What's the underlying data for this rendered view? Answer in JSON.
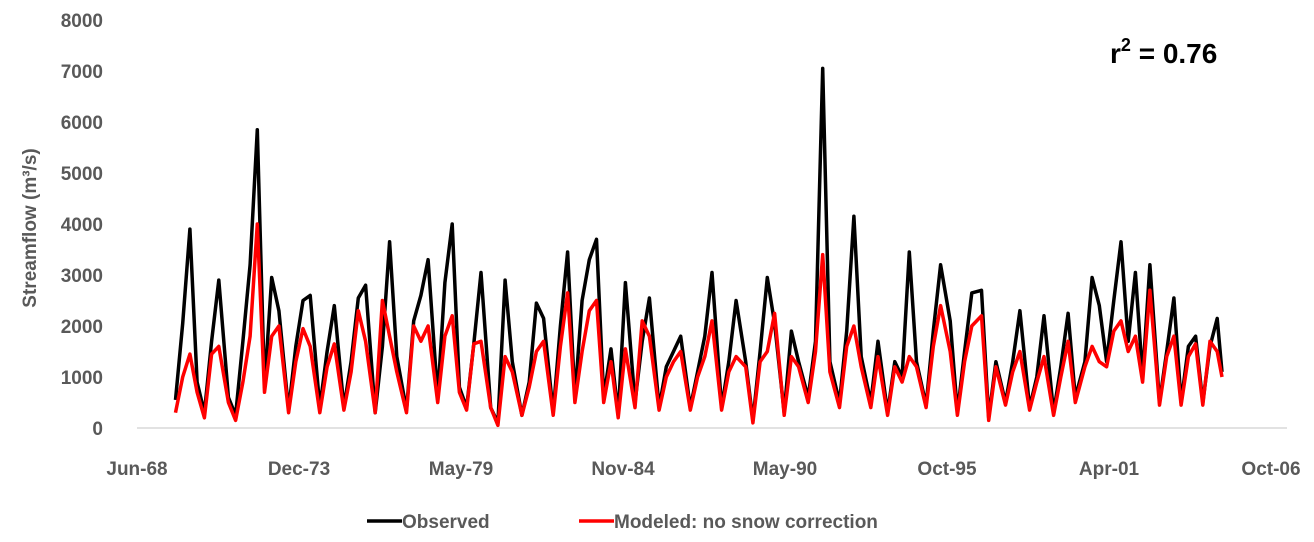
{
  "chart_data": {
    "type": "line",
    "ylabel": "Streamflow (m³/s)",
    "ylim": [
      0,
      8000
    ],
    "y_ticks": [
      "0",
      "1000",
      "2000",
      "3000",
      "4000",
      "5000",
      "6000",
      "7000",
      "8000"
    ],
    "x_ticks": [
      "Jun-68",
      "Dec-73",
      "May-79",
      "Nov-84",
      "May-90",
      "Oct-95",
      "Apr-01",
      "Oct-06"
    ],
    "xlim": [
      "1968-06",
      "2008-04"
    ],
    "grid": false,
    "legend_position": "bottom",
    "annotation": {
      "base": "r",
      "sup": "2",
      "rest": " = 0.76"
    },
    "colors": {
      "observed": "#000000",
      "modeled": "#ff0000"
    },
    "series": [
      {
        "name": "Observed",
        "color": "#000000",
        "points": [
          [
            "1969-10",
            550
          ],
          [
            "1970-01",
            2050
          ],
          [
            "1970-04",
            3900
          ],
          [
            "1970-07",
            900
          ],
          [
            "1970-10",
            300
          ],
          [
            "1971-01",
            1700
          ],
          [
            "1971-04",
            2900
          ],
          [
            "1971-08",
            600
          ],
          [
            "1971-11",
            250
          ],
          [
            "1972-02",
            1700
          ],
          [
            "1972-05",
            3200
          ],
          [
            "1972-08",
            5850
          ],
          [
            "1972-11",
            800
          ],
          [
            "1973-02",
            2950
          ],
          [
            "1973-05",
            2300
          ],
          [
            "1973-09",
            350
          ],
          [
            "1973-12",
            1600
          ],
          [
            "1974-03",
            2500
          ],
          [
            "1974-06",
            2600
          ],
          [
            "1974-10",
            400
          ],
          [
            "1975-01",
            1500
          ],
          [
            "1975-04",
            2400
          ],
          [
            "1975-08",
            400
          ],
          [
            "1975-11",
            1300
          ],
          [
            "1976-02",
            2550
          ],
          [
            "1976-05",
            2800
          ],
          [
            "1976-09",
            300
          ],
          [
            "1976-12",
            1600
          ],
          [
            "1977-03",
            3650
          ],
          [
            "1977-06",
            1400
          ],
          [
            "1977-10",
            350
          ],
          [
            "1978-01",
            2100
          ],
          [
            "1978-04",
            2600
          ],
          [
            "1978-07",
            3300
          ],
          [
            "1978-11",
            600
          ],
          [
            "1979-02",
            2850
          ],
          [
            "1979-05",
            4000
          ],
          [
            "1979-08",
            800
          ],
          [
            "1979-11",
            400
          ],
          [
            "1980-02",
            1650
          ],
          [
            "1980-05",
            3050
          ],
          [
            "1980-09",
            400
          ],
          [
            "1980-12",
            100
          ],
          [
            "1981-03",
            2900
          ],
          [
            "1981-06",
            1300
          ],
          [
            "1981-10",
            250
          ],
          [
            "1982-01",
            900
          ],
          [
            "1982-04",
            2450
          ],
          [
            "1982-07",
            2150
          ],
          [
            "1982-11",
            300
          ],
          [
            "1983-02",
            2000
          ],
          [
            "1983-05",
            3450
          ],
          [
            "1983-08",
            600
          ],
          [
            "1983-11",
            2500
          ],
          [
            "1984-02",
            3300
          ],
          [
            "1984-05",
            3700
          ],
          [
            "1984-08",
            600
          ],
          [
            "1984-11",
            1550
          ],
          [
            "1985-02",
            250
          ],
          [
            "1985-05",
            2850
          ],
          [
            "1985-09",
            500
          ],
          [
            "1985-12",
            1700
          ],
          [
            "1986-03",
            2550
          ],
          [
            "1986-07",
            400
          ],
          [
            "1986-10",
            1200
          ],
          [
            "1987-01",
            1500
          ],
          [
            "1987-04",
            1800
          ],
          [
            "1987-08",
            400
          ],
          [
            "1987-11",
            1100
          ],
          [
            "1988-02",
            1800
          ],
          [
            "1988-05",
            3050
          ],
          [
            "1988-09",
            400
          ],
          [
            "1988-12",
            1300
          ],
          [
            "1989-03",
            2500
          ],
          [
            "1989-07",
            1300
          ],
          [
            "1989-10",
            150
          ],
          [
            "1990-01",
            1500
          ],
          [
            "1990-04",
            2950
          ],
          [
            "1990-07",
            2050
          ],
          [
            "1990-11",
            300
          ],
          [
            "1991-02",
            1900
          ],
          [
            "1991-05",
            1300
          ],
          [
            "1991-09",
            600
          ],
          [
            "1991-12",
            1700
          ],
          [
            "1992-03",
            7050
          ],
          [
            "1992-06",
            1300
          ],
          [
            "1992-10",
            500
          ],
          [
            "1993-01",
            1900
          ],
          [
            "1993-04",
            4150
          ],
          [
            "1993-07",
            1400
          ],
          [
            "1993-11",
            500
          ],
          [
            "1994-02",
            1700
          ],
          [
            "1994-06",
            300
          ],
          [
            "1994-09",
            1300
          ],
          [
            "1994-12",
            1000
          ],
          [
            "1995-03",
            3450
          ],
          [
            "1995-06",
            1300
          ],
          [
            "1995-10",
            450
          ],
          [
            "1996-01",
            1900
          ],
          [
            "1996-04",
            3200
          ],
          [
            "1996-08",
            2100
          ],
          [
            "1996-11",
            300
          ],
          [
            "1997-02",
            1500
          ],
          [
            "1997-05",
            2650
          ],
          [
            "1997-09",
            2700
          ],
          [
            "1997-12",
            200
          ],
          [
            "1998-03",
            1300
          ],
          [
            "1998-07",
            500
          ],
          [
            "1998-10",
            1300
          ],
          [
            "1999-01",
            2300
          ],
          [
            "1999-05",
            400
          ],
          [
            "1999-08",
            1000
          ],
          [
            "1999-11",
            2200
          ],
          [
            "2000-03",
            300
          ],
          [
            "2000-06",
            1200
          ],
          [
            "2000-09",
            2250
          ],
          [
            "2000-12",
            600
          ],
          [
            "2001-04",
            1300
          ],
          [
            "2001-07",
            2950
          ],
          [
            "2001-10",
            2400
          ],
          [
            "2002-01",
            1300
          ],
          [
            "2002-04",
            2500
          ],
          [
            "2002-07",
            3650
          ],
          [
            "2002-10",
            1700
          ],
          [
            "2003-01",
            3050
          ],
          [
            "2003-04",
            1000
          ],
          [
            "2003-07",
            3200
          ],
          [
            "2003-11",
            500
          ],
          [
            "2004-02",
            1500
          ],
          [
            "2004-05",
            2550
          ],
          [
            "2004-08",
            500
          ],
          [
            "2004-11",
            1600
          ],
          [
            "2005-02",
            1800
          ],
          [
            "2005-05",
            500
          ],
          [
            "2005-08",
            1600
          ],
          [
            "2005-11",
            2150
          ],
          [
            "2006-01",
            1100
          ]
        ]
      },
      {
        "name": "Modeled: no snow correction",
        "color": "#ff0000",
        "points": [
          [
            "1969-10",
            300
          ],
          [
            "1970-01",
            1000
          ],
          [
            "1970-04",
            1450
          ],
          [
            "1970-07",
            700
          ],
          [
            "1970-10",
            200
          ],
          [
            "1971-01",
            1450
          ],
          [
            "1971-04",
            1600
          ],
          [
            "1971-08",
            500
          ],
          [
            "1971-11",
            150
          ],
          [
            "1972-02",
            900
          ],
          [
            "1972-05",
            1800
          ],
          [
            "1972-08",
            4000
          ],
          [
            "1972-11",
            700
          ],
          [
            "1973-02",
            1800
          ],
          [
            "1973-05",
            2000
          ],
          [
            "1973-09",
            300
          ],
          [
            "1973-12",
            1300
          ],
          [
            "1974-03",
            1950
          ],
          [
            "1974-06",
            1600
          ],
          [
            "1974-10",
            300
          ],
          [
            "1975-01",
            1200
          ],
          [
            "1975-04",
            1650
          ],
          [
            "1975-08",
            350
          ],
          [
            "1975-11",
            1100
          ],
          [
            "1976-02",
            2300
          ],
          [
            "1976-05",
            1700
          ],
          [
            "1976-09",
            300
          ],
          [
            "1976-12",
            2500
          ],
          [
            "1977-03",
            1800
          ],
          [
            "1977-06",
            1100
          ],
          [
            "1977-10",
            300
          ],
          [
            "1978-01",
            2000
          ],
          [
            "1978-04",
            1700
          ],
          [
            "1978-07",
            2000
          ],
          [
            "1978-11",
            500
          ],
          [
            "1979-02",
            1800
          ],
          [
            "1979-05",
            2200
          ],
          [
            "1979-08",
            700
          ],
          [
            "1979-11",
            350
          ],
          [
            "1980-02",
            1650
          ],
          [
            "1980-05",
            1700
          ],
          [
            "1980-09",
            400
          ],
          [
            "1980-12",
            50
          ],
          [
            "1981-03",
            1400
          ],
          [
            "1981-06",
            1100
          ],
          [
            "1981-10",
            250
          ],
          [
            "1982-01",
            800
          ],
          [
            "1982-04",
            1500
          ],
          [
            "1982-07",
            1700
          ],
          [
            "1982-11",
            250
          ],
          [
            "1983-02",
            1600
          ],
          [
            "1983-05",
            2650
          ],
          [
            "1983-08",
            500
          ],
          [
            "1983-11",
            1500
          ],
          [
            "1984-02",
            2300
          ],
          [
            "1984-05",
            2500
          ],
          [
            "1984-08",
            500
          ],
          [
            "1984-11",
            1300
          ],
          [
            "1985-02",
            200
          ],
          [
            "1985-05",
            1550
          ],
          [
            "1985-09",
            400
          ],
          [
            "1985-12",
            2100
          ],
          [
            "1986-03",
            1800
          ],
          [
            "1986-07",
            350
          ],
          [
            "1986-10",
            1000
          ],
          [
            "1987-01",
            1300
          ],
          [
            "1987-04",
            1500
          ],
          [
            "1987-08",
            350
          ],
          [
            "1987-11",
            1000
          ],
          [
            "1988-02",
            1400
          ],
          [
            "1988-05",
            2100
          ],
          [
            "1988-09",
            350
          ],
          [
            "1988-12",
            1100
          ],
          [
            "1989-03",
            1400
          ],
          [
            "1989-07",
            1200
          ],
          [
            "1989-10",
            100
          ],
          [
            "1990-01",
            1300
          ],
          [
            "1990-04",
            1500
          ],
          [
            "1990-07",
            2250
          ],
          [
            "1990-11",
            250
          ],
          [
            "1991-02",
            1400
          ],
          [
            "1991-05",
            1200
          ],
          [
            "1991-09",
            500
          ],
          [
            "1991-12",
            1500
          ],
          [
            "1992-03",
            3400
          ],
          [
            "1992-06",
            1100
          ],
          [
            "1992-10",
            400
          ],
          [
            "1993-01",
            1600
          ],
          [
            "1993-04",
            2000
          ],
          [
            "1993-07",
            1200
          ],
          [
            "1993-11",
            400
          ],
          [
            "1994-02",
            1400
          ],
          [
            "1994-06",
            250
          ],
          [
            "1994-09",
            1200
          ],
          [
            "1994-12",
            900
          ],
          [
            "1995-03",
            1400
          ],
          [
            "1995-06",
            1200
          ],
          [
            "1995-10",
            400
          ],
          [
            "1996-01",
            1600
          ],
          [
            "1996-04",
            2400
          ],
          [
            "1996-08",
            1500
          ],
          [
            "1996-11",
            250
          ],
          [
            "1997-02",
            1300
          ],
          [
            "1997-05",
            2000
          ],
          [
            "1997-09",
            2200
          ],
          [
            "1997-12",
            150
          ],
          [
            "1998-03",
            1200
          ],
          [
            "1998-07",
            450
          ],
          [
            "1998-10",
            1100
          ],
          [
            "1999-01",
            1500
          ],
          [
            "1999-05",
            350
          ],
          [
            "1999-08",
            900
          ],
          [
            "1999-11",
            1400
          ],
          [
            "2000-03",
            250
          ],
          [
            "2000-06",
            1000
          ],
          [
            "2000-09",
            1700
          ],
          [
            "2000-12",
            500
          ],
          [
            "2001-04",
            1200
          ],
          [
            "2001-07",
            1600
          ],
          [
            "2001-10",
            1300
          ],
          [
            "2002-01",
            1200
          ],
          [
            "2002-04",
            1900
          ],
          [
            "2002-07",
            2100
          ],
          [
            "2002-10",
            1500
          ],
          [
            "2003-01",
            1800
          ],
          [
            "2003-04",
            900
          ],
          [
            "2003-07",
            2700
          ],
          [
            "2003-11",
            450
          ],
          [
            "2004-02",
            1400
          ],
          [
            "2004-05",
            1800
          ],
          [
            "2004-08",
            450
          ],
          [
            "2004-11",
            1400
          ],
          [
            "2005-02",
            1650
          ],
          [
            "2005-05",
            450
          ],
          [
            "2005-08",
            1700
          ],
          [
            "2005-11",
            1500
          ],
          [
            "2006-01",
            1000
          ]
        ]
      }
    ]
  }
}
